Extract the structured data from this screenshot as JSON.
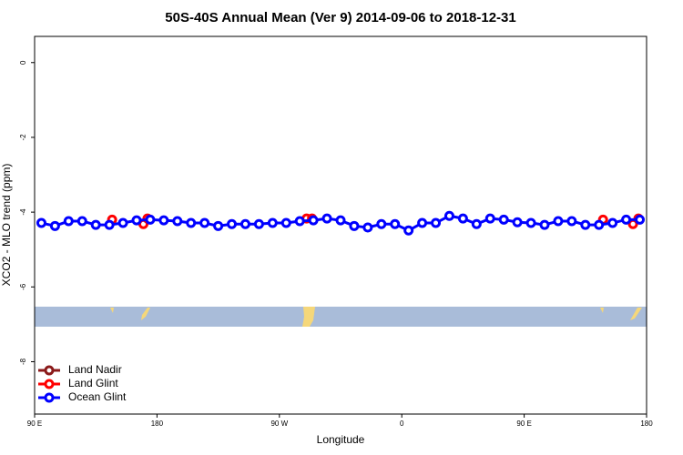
{
  "chart_data": {
    "type": "line",
    "title": "50S-40S Annual Mean (Ver 9)   2014-09-06 to 2018-12-31",
    "x_label": "Longitude",
    "y_label": "XCO2 - MLO trend (ppm)",
    "xlim": [
      90,
      540
    ],
    "xticks": [
      {
        "value": 90,
        "label": "90 E"
      },
      {
        "value": 180,
        "label": "180"
      },
      {
        "value": 270,
        "label": "90 W"
      },
      {
        "value": 360,
        "label": "0"
      },
      {
        "value": 450,
        "label": "90 E"
      },
      {
        "value": 540,
        "label": "180"
      }
    ],
    "ylim": [
      -9.4,
      0.7
    ],
    "yticks": [
      0,
      -2,
      -4,
      -6,
      -8
    ],
    "legend": "bottom-left",
    "series": [
      {
        "name": "Land Nadir",
        "color": "#8b1a1a",
        "x": [],
        "values": []
      },
      {
        "name": "Land Glint",
        "color": "#ff0000",
        "x": [
          147,
          160,
          170,
          173,
          230,
          290,
          294,
          400,
          508,
          520,
          530,
          534
        ],
        "values": [
          -4.2,
          null,
          -4.32,
          -4.17,
          null,
          -4.17,
          -4.17,
          null,
          -4.2,
          null,
          -4.32,
          -4.17
        ]
      },
      {
        "name": "Ocean Glint",
        "color": "#0000ff",
        "x": [
          95,
          105,
          115,
          125,
          135,
          145,
          155,
          165,
          175,
          185,
          195,
          205,
          215,
          225,
          235,
          245,
          255,
          265,
          275,
          285,
          295,
          305,
          315,
          325,
          335,
          345,
          355,
          365,
          375,
          385,
          395,
          405,
          415,
          425,
          435,
          445,
          455,
          465,
          475,
          485,
          495,
          505,
          515,
          525,
          535
        ],
        "values": [
          -4.29,
          -4.37,
          -4.24,
          -4.24,
          -4.34,
          -4.34,
          -4.29,
          -4.22,
          -4.2,
          -4.22,
          -4.24,
          -4.29,
          -4.29,
          -4.37,
          -4.32,
          -4.32,
          -4.32,
          -4.29,
          -4.29,
          -4.24,
          -4.22,
          -4.17,
          -4.22,
          -4.37,
          -4.41,
          -4.32,
          -4.32,
          -4.49,
          -4.29,
          -4.29,
          -4.1,
          -4.17,
          -4.32,
          -4.17,
          -4.2,
          -4.27,
          -4.29,
          -4.34,
          -4.24,
          -4.24,
          -4.34,
          -4.34,
          -4.29,
          -4.2,
          -4.2
        ]
      }
    ]
  }
}
